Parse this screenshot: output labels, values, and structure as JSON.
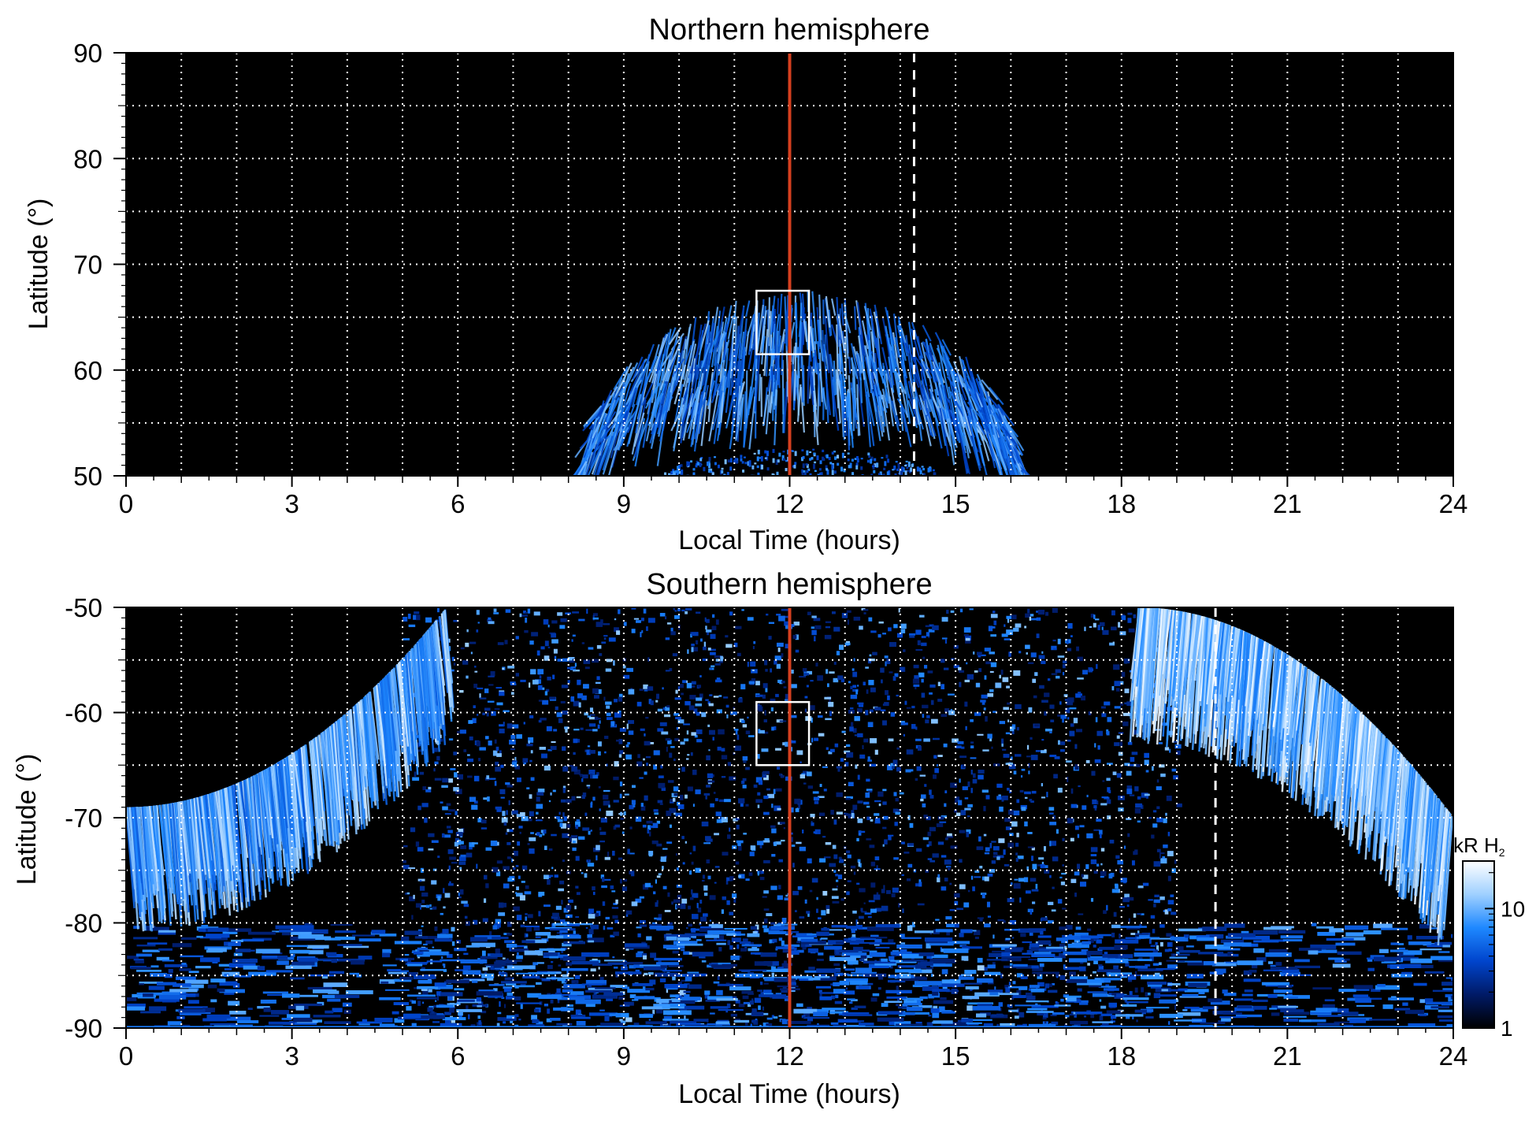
{
  "chart_data": [
    {
      "type": "heatmap",
      "title": "Northern hemisphere",
      "xlabel": "Local Time (hours)",
      "ylabel": "Latitude (°)",
      "xlim": [
        0,
        24
      ],
      "ylim": [
        50,
        90
      ],
      "xticks": [
        0,
        3,
        6,
        9,
        12,
        15,
        18,
        21,
        24
      ],
      "xtick_labels": [
        "0",
        "3",
        "6",
        "9",
        "12",
        "15",
        "18",
        "21",
        "24"
      ],
      "yticks": [
        50,
        60,
        70,
        80,
        90
      ],
      "ytick_labels": [
        "50",
        "60",
        "70",
        "80",
        "90"
      ],
      "grid": true,
      "grid_x_step": 1,
      "grid_y_step": 5,
      "background": "#000000",
      "auroral_arcs": [
        {
          "center_lt": 12.2,
          "lt_half_width": 3.9,
          "lat_peak_outer": 67.5,
          "lat_peak_inner": 58.0,
          "lat_edge": 50.0,
          "brightness": "medium"
        },
        {
          "center_lt": 12.2,
          "lt_half_width": 2.5,
          "lat_peak_outer": 52.5,
          "lat_peak_inner": 50.0,
          "lat_edge": 50.0,
          "brightness": "low"
        }
      ],
      "reference_lines": [
        {
          "x": 12,
          "color": "#d6401f",
          "style": "solid"
        },
        {
          "x": 14.25,
          "color": "#ffffff",
          "style": "dashed"
        }
      ],
      "highlight_box": {
        "lt_range": [
          11.4,
          12.35
        ],
        "lat_range": [
          61.5,
          67.5
        ],
        "color": "#ffffff"
      }
    },
    {
      "type": "heatmap",
      "title": "Southern hemisphere",
      "xlabel": "Local Time (hours)",
      "ylabel": "Latitude (°)",
      "xlim": [
        0,
        24
      ],
      "ylim": [
        -90,
        -50
      ],
      "xticks": [
        0,
        3,
        6,
        9,
        12,
        15,
        18,
        21,
        24
      ],
      "xtick_labels": [
        "0",
        "3",
        "6",
        "9",
        "12",
        "15",
        "18",
        "21",
        "24"
      ],
      "yticks": [
        -50,
        -60,
        -70,
        -80,
        -90
      ],
      "ytick_labels": [
        "-50",
        "-60",
        "-70",
        "-80",
        "-90"
      ],
      "grid": true,
      "grid_x_step": 1,
      "grid_y_step": 5,
      "background": "#000000",
      "auroral_arcs": [
        {
          "side": "dawn",
          "lt_from": 0,
          "lt_to": 5.8,
          "lat_top": -50,
          "lat_bottom": -80,
          "brightness": "high"
        },
        {
          "side": "dusk",
          "lt_from": 18.3,
          "lt_to": 24,
          "lat_top": -50,
          "lat_bottom": -80,
          "brightness": "very high"
        }
      ],
      "reference_lines": [
        {
          "x": 12,
          "color": "#d6401f",
          "style": "solid"
        },
        {
          "x": 19.7,
          "color": "#ffffff",
          "style": "dashed"
        }
      ],
      "highlight_box": {
        "lt_range": [
          11.4,
          12.35
        ],
        "lat_range": [
          -65.0,
          -59.0
        ],
        "color": "#ffffff"
      }
    }
  ],
  "colorbar": {
    "label_main": "kR H",
    "label_sub": "2",
    "scale": "log",
    "range": [
      1,
      25
    ],
    "ticks": [
      1,
      10
    ],
    "tick_labels": [
      "1",
      "10"
    ],
    "colors": [
      "#000000",
      "#001a66",
      "#0044cc",
      "#1e88ff",
      "#9fd0ff",
      "#ffffff"
    ]
  }
}
